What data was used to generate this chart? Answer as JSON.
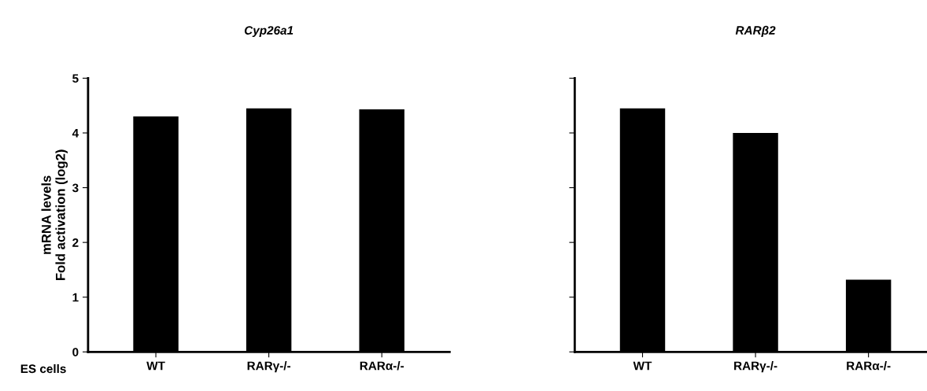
{
  "chart_data": [
    {
      "type": "bar",
      "title": "Cyp26a1",
      "ylabel": "mRNA levels\nFold activation (log2)",
      "categories": [
        "WT",
        "RARγ-/-",
        "RARα-/-"
      ],
      "values": [
        4.3,
        4.45,
        4.43
      ],
      "color": "#000000",
      "ylim": [
        0,
        5
      ],
      "yticks": [
        0,
        1,
        2,
        3,
        4,
        5
      ],
      "grid": false,
      "legend": false,
      "annotations": [
        "ES cells"
      ]
    },
    {
      "type": "bar",
      "title": "RARβ2",
      "categories": [
        "WT",
        "RARγ-/-",
        "RARα-/-"
      ],
      "values": [
        4.45,
        4.0,
        1.32
      ],
      "color": "#000000",
      "ylim": [
        0,
        5
      ],
      "yticks": [
        0,
        1,
        2,
        3,
        4,
        5
      ],
      "tick_labels": "x",
      "grid": false,
      "legend": false
    }
  ]
}
